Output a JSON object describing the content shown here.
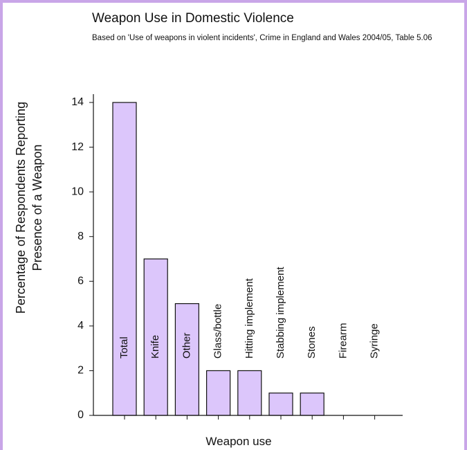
{
  "chart_data": {
    "type": "bar",
    "title": "Weapon Use in Domestic Violence",
    "subtitle": "Based on 'Use of weapons in violent incidents', Crime in England and Wales 2004/05, Table 5.06",
    "xlabel": "Weapon use",
    "ylabel_line1": "Percentage of Respondents Reporting",
    "ylabel_line2": "Presence of a Weapon",
    "categories": [
      "Total",
      "Knife",
      "Other",
      "Glass/bottle",
      "Hitting implement",
      "Stabbing implement",
      "Stones",
      "Firearm",
      "Syringe"
    ],
    "values": [
      14,
      7,
      5,
      2,
      2,
      1,
      1,
      0,
      0
    ],
    "ylim": [
      0,
      14
    ],
    "yticks": [
      0,
      2,
      4,
      6,
      8,
      10,
      12,
      14
    ],
    "grid": false,
    "bar_color": "#dcc6fb",
    "bar_edge_color": "#111111"
  }
}
